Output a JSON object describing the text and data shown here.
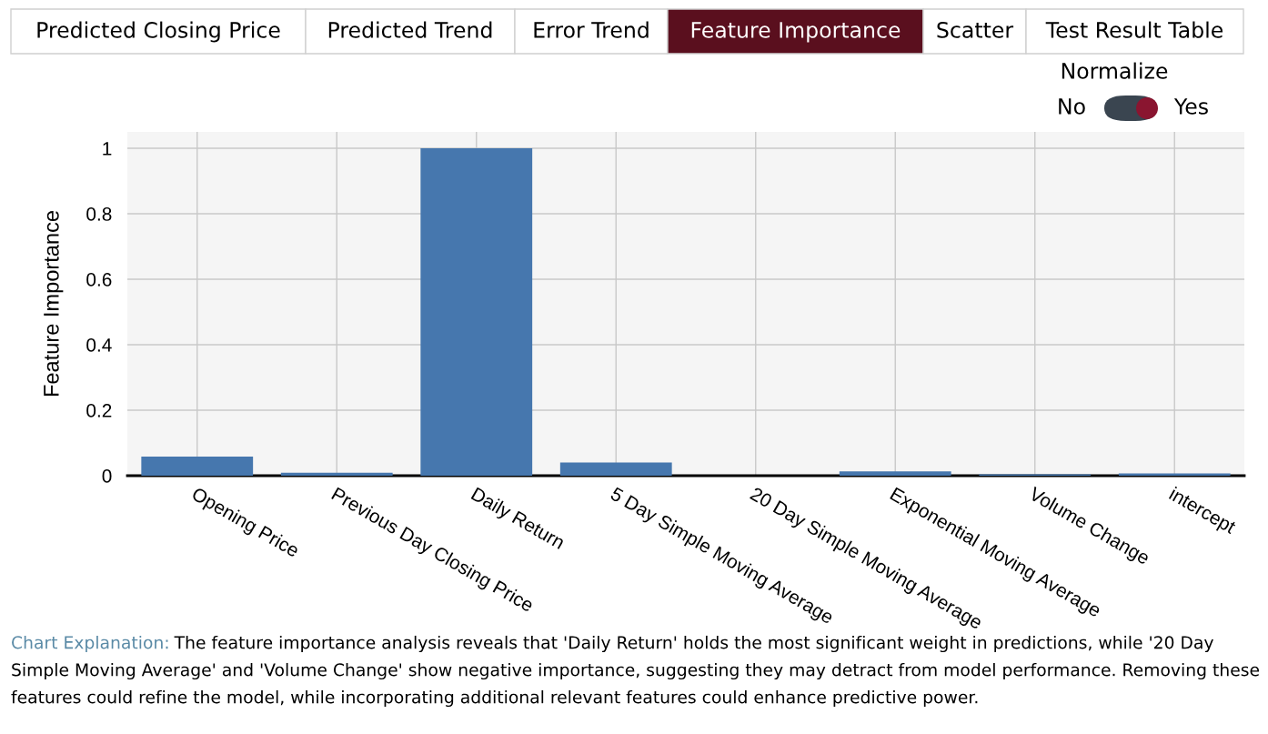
{
  "chart_data": {
    "type": "bar",
    "categories": [
      "Opening Price",
      "Previous Day Closing Price",
      "Daily Return",
      "5 Day Simple Moving Average",
      "20 Day Simple Moving Average",
      "Exponential Moving Average",
      "Volume Change",
      "intercept"
    ],
    "values": [
      0.058,
      0.009,
      1,
      0.04,
      0,
      0.013,
      0.004,
      0.007
    ],
    "color": "#4677ae",
    "ylabel": "Feature Importance",
    "ylim": [
      0,
      1.05
    ],
    "yticks": [
      0,
      0.2,
      0.4,
      0.6,
      0.8,
      1
    ],
    "grid": true,
    "annotations": [
      "Predicted Closing Price",
      "Predicted Trend",
      "Error Trend",
      "Feature Importance",
      "Scatter",
      "Test Result Table",
      "Normalize",
      "No",
      "Yes",
      "Chart Explanation:",
      "The feature importance analysis reveals that 'Daily Return' holds the most significant weight in predictions, while '20 Day Simple Moving Average' and 'Volume Change' show negative importance, suggesting they may detract from model performance. Removing these features could refine the model, while incorporating additional relevant features could enhance predictive power."
    ]
  }
}
